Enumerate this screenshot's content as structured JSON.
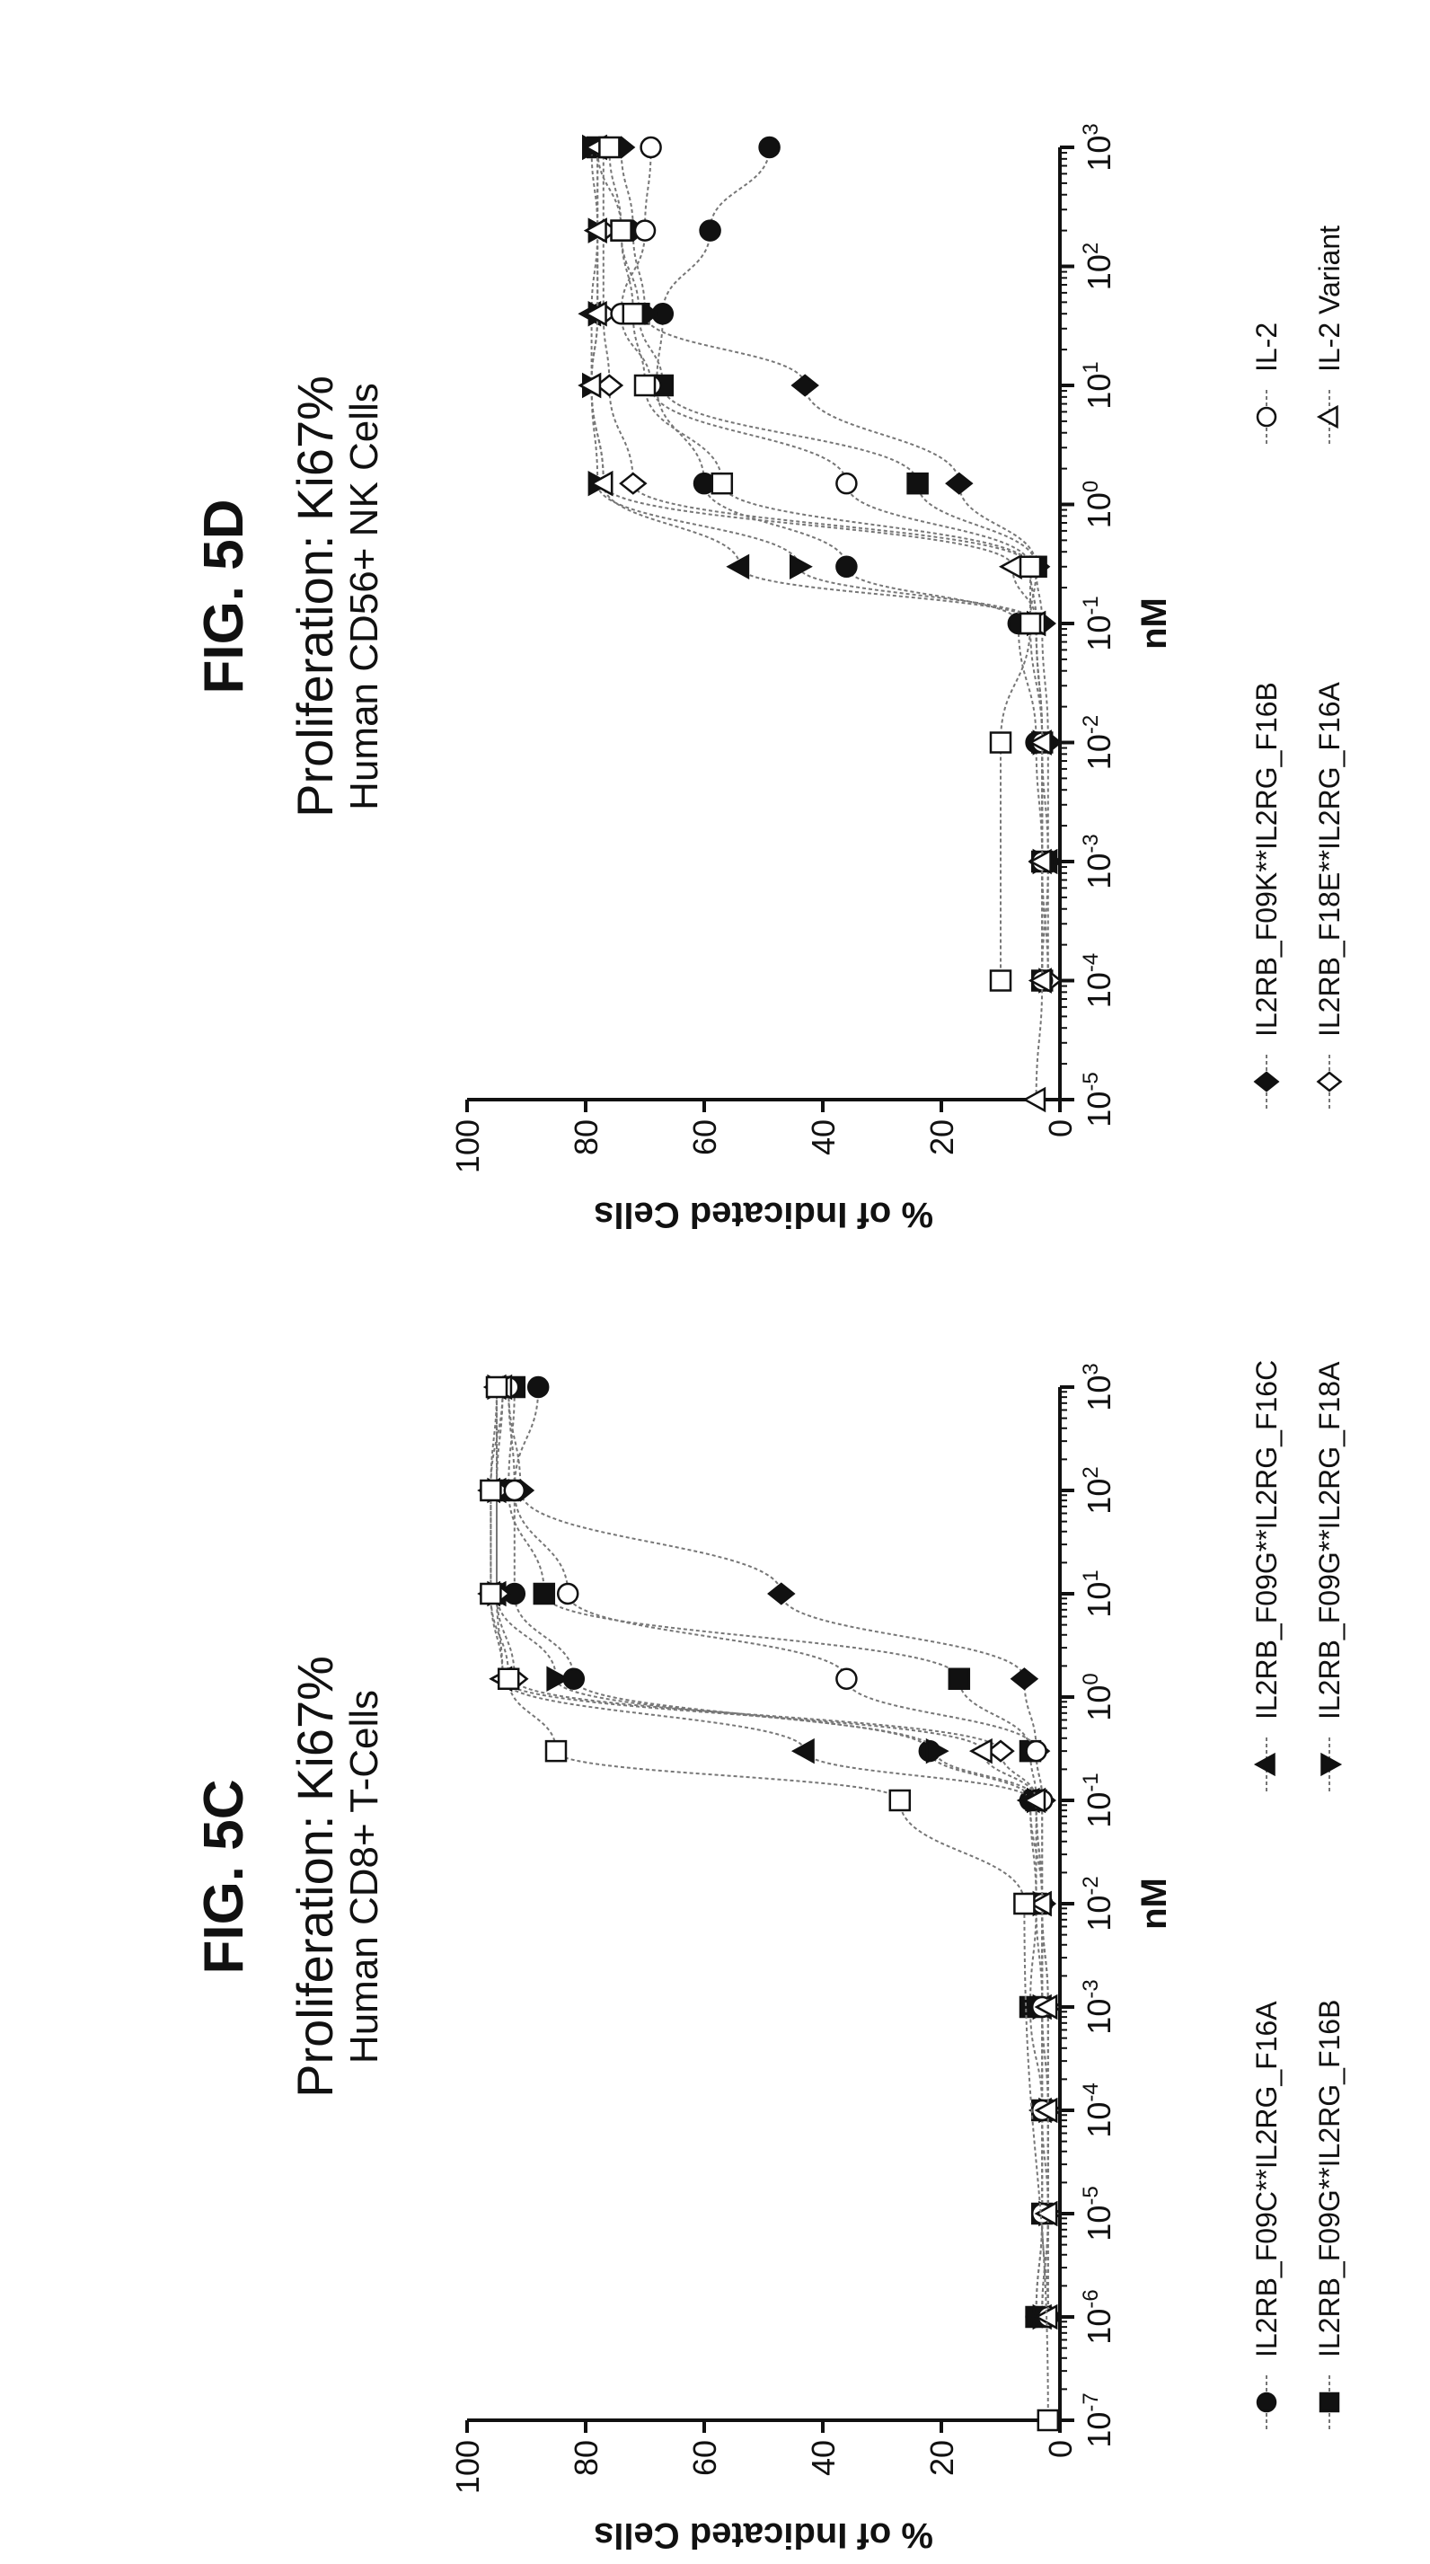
{
  "chart_data": [
    {
      "figure_label": "FIG. 5C",
      "type": "scatter",
      "title": "Proliferation: Ki67%",
      "subtitle": "Human CD8+ T-Cells",
      "xlabel": "nM",
      "ylabel": "% of Indicated Cells",
      "x_scale": "log",
      "xlim": [
        1e-07,
        1000
      ],
      "ylim": [
        0,
        100
      ],
      "x_ticks": [
        {
          "value": 1e-07,
          "base": "10",
          "exp": "-7"
        },
        {
          "value": 1e-06,
          "base": "10",
          "exp": "-6"
        },
        {
          "value": 1e-05,
          "base": "10",
          "exp": "-5"
        },
        {
          "value": 0.0001,
          "base": "10",
          "exp": "-4"
        },
        {
          "value": 0.001,
          "base": "10",
          "exp": "-3"
        },
        {
          "value": 0.01,
          "base": "10",
          "exp": "-2"
        },
        {
          "value": 0.1,
          "base": "10",
          "exp": "-1"
        },
        {
          "value": 1,
          "base": "10",
          "exp": "0"
        },
        {
          "value": 10,
          "base": "10",
          "exp": "1"
        },
        {
          "value": 100,
          "base": "10",
          "exp": "2"
        },
        {
          "value": 1000,
          "base": "10",
          "exp": "3"
        }
      ],
      "y_ticks": [
        "0",
        "20",
        "40",
        "60",
        "80",
        "100"
      ],
      "series": [
        {
          "name": "IL2RB_F09C**IL2RG_F16A",
          "marker": "circle-filled",
          "x": [
            1e-06,
            1e-05,
            0.0001,
            0.001,
            0.01,
            0.1,
            0.3,
            1.5,
            10,
            100,
            1000
          ],
          "y": [
            4,
            3,
            3,
            3,
            4,
            5,
            22,
            82,
            92,
            92,
            88
          ]
        },
        {
          "name": "IL2RB_F09G**IL2RG_F16B",
          "marker": "square-filled",
          "x": [
            1e-06,
            1e-05,
            0.0001,
            0.001,
            0.01,
            0.1,
            0.3,
            1.5,
            10,
            100,
            1000
          ],
          "y": [
            4,
            3,
            3,
            5,
            4,
            4,
            5,
            17,
            87,
            93,
            92
          ]
        },
        {
          "name": "IL2RB_F09G**IL2RG_F16C",
          "marker": "triangle-filled",
          "x": [
            1e-06,
            1e-05,
            0.0001,
            0.001,
            0.01,
            0.1,
            0.3,
            1.5,
            10,
            100,
            1000
          ],
          "y": [
            3,
            2,
            3,
            3,
            3,
            5,
            43,
            94,
            95,
            95,
            95
          ]
        },
        {
          "name": "IL2RB_F09G**IL2RG_F18A",
          "marker": "tri-down-filled",
          "x": [
            1e-06,
            1e-05,
            0.0001,
            0.001,
            0.01,
            0.1,
            0.3,
            1.5,
            10,
            100,
            1000
          ],
          "y": [
            3,
            2,
            2,
            3,
            3,
            4,
            21,
            85,
            95,
            95,
            95
          ]
        },
        {
          "name": "IL2RB_F09K**IL2RG_F16B",
          "marker": "diamond-filled",
          "x": [
            1e-06,
            1e-05,
            0.0001,
            0.001,
            0.01,
            0.1,
            0.3,
            1.5,
            10,
            100,
            1000
          ],
          "y": [
            3,
            2,
            2,
            3,
            3,
            3,
            4,
            6,
            47,
            91,
            93
          ]
        },
        {
          "name": "IL2RB_F18E**IL2RG_F16A",
          "marker": "diamond-open",
          "x": [
            1e-06,
            1e-05,
            0.0001,
            0.001,
            0.01,
            0.1,
            0.3,
            1.5,
            10,
            100,
            1000
          ],
          "y": [
            2,
            2,
            2,
            2,
            3,
            4,
            10,
            92,
            95,
            95,
            94
          ]
        },
        {
          "name": "IL-2",
          "marker": "circle-open",
          "x": [
            1e-06,
            1e-05,
            0.0001,
            0.001,
            0.01,
            0.1,
            0.3,
            1.5,
            10,
            100,
            1000
          ],
          "y": [
            2,
            3,
            3,
            3,
            3,
            3,
            4,
            36,
            83,
            92,
            93
          ]
        },
        {
          "name": "IL-2 Variant",
          "marker": "triangle-open",
          "x": [
            1e-06,
            1e-05,
            0.0001,
            0.001,
            0.01,
            0.1,
            0.3,
            1.5,
            10,
            100,
            1000
          ],
          "y": [
            2,
            2,
            2,
            2,
            3,
            4,
            13,
            94,
            96,
            96,
            94
          ]
        },
        {
          "name": "",
          "marker": "square-open",
          "x": [
            1e-07,
            0.01,
            0.1,
            0.3,
            1.5,
            10,
            100,
            1000
          ],
          "y": [
            2,
            6,
            27,
            85,
            93,
            96,
            96,
            95
          ]
        }
      ]
    },
    {
      "figure_label": "FIG. 5D",
      "type": "scatter",
      "title": "Proliferation: Ki67%",
      "subtitle": "Human CD56+ NK Cells",
      "xlabel": "nM",
      "ylabel": "% of Indicated Cells",
      "x_scale": "log",
      "xlim": [
        1e-05,
        1000
      ],
      "ylim": [
        0,
        100
      ],
      "x_ticks": [
        {
          "value": 1e-05,
          "base": "10",
          "exp": "-5"
        },
        {
          "value": 0.0001,
          "base": "10",
          "exp": "-4"
        },
        {
          "value": 0.001,
          "base": "10",
          "exp": "-3"
        },
        {
          "value": 0.01,
          "base": "10",
          "exp": "-2"
        },
        {
          "value": 0.1,
          "base": "10",
          "exp": "-1"
        },
        {
          "value": 1,
          "base": "10",
          "exp": "0"
        },
        {
          "value": 10,
          "base": "10",
          "exp": "1"
        },
        {
          "value": 100,
          "base": "10",
          "exp": "2"
        },
        {
          "value": 1000,
          "base": "10",
          "exp": "3"
        }
      ],
      "y_ticks": [
        "0",
        "20",
        "40",
        "60",
        "80",
        "100"
      ],
      "series": [
        {
          "name": "IL2RB_F09C**IL2RG_F16A",
          "marker": "circle-filled",
          "x": [
            0.0001,
            0.001,
            0.01,
            0.1,
            0.3,
            1.5,
            10,
            40,
            200,
            1000
          ],
          "y": [
            3,
            3,
            4,
            7,
            36,
            60,
            68,
            67,
            59,
            49
          ]
        },
        {
          "name": "IL2RB_F09G**IL2RG_F16B",
          "marker": "square-filled",
          "x": [
            0.0001,
            0.001,
            0.01,
            0.1,
            0.3,
            1.5,
            10,
            40,
            200,
            1000
          ],
          "y": [
            3,
            3,
            3,
            5,
            4,
            24,
            67,
            71,
            74,
            78
          ]
        },
        {
          "name": "IL2RB_F09G**IL2RG_F16C",
          "marker": "triangle-filled",
          "x": [
            0.0001,
            0.001,
            0.01,
            0.1,
            0.3,
            1.5,
            10,
            40,
            200,
            1000
          ],
          "y": [
            3,
            2,
            3,
            4,
            54,
            77,
            79,
            79,
            78,
            78
          ]
        },
        {
          "name": "IL2RB_F09G**IL2RG_F18A",
          "marker": "tri-down-filled",
          "x": [
            0.0001,
            0.001,
            0.01,
            0.1,
            0.3,
            1.5,
            10,
            40,
            200,
            1000
          ],
          "y": [
            2,
            3,
            3,
            4,
            44,
            78,
            79,
            78,
            78,
            79
          ]
        },
        {
          "name": "IL2RB_F09K**IL2RG_F16B",
          "marker": "diamond-filled",
          "x": [
            0.0001,
            0.001,
            0.01,
            0.1,
            0.3,
            1.5,
            10,
            40,
            200,
            1000
          ],
          "y": [
            2,
            2,
            2,
            3,
            4,
            17,
            43,
            70,
            72,
            74
          ]
        },
        {
          "name": "IL2RB_F18E**IL2RG_F16A",
          "marker": "diamond-open",
          "x": [
            0.0001,
            0.001,
            0.01,
            0.1,
            0.3,
            1.5,
            10,
            40,
            200,
            1000
          ],
          "y": [
            2,
            3,
            3,
            4,
            5,
            72,
            76,
            77,
            77,
            77
          ]
        },
        {
          "name": "IL-2",
          "marker": "circle-open",
          "x": [
            0.0001,
            0.001,
            0.01,
            0.1,
            0.3,
            1.5,
            10,
            40,
            200,
            1000
          ],
          "y": [
            3,
            3,
            3,
            4,
            5,
            36,
            69,
            74,
            70,
            69
          ]
        },
        {
          "name": "IL-2 Variant",
          "marker": "triangle-open",
          "x": [
            1e-05,
            0.0001,
            0.001,
            0.01,
            0.1,
            0.3,
            1.5,
            10,
            40,
            200,
            1000
          ],
          "y": [
            4,
            3,
            3,
            3,
            4,
            8,
            77,
            79,
            78,
            78,
            78
          ]
        },
        {
          "name": "",
          "marker": "square-open",
          "x": [
            0.0001,
            0.01,
            0.1,
            0.3,
            1.5,
            10,
            40,
            200,
            1000
          ],
          "y": [
            10,
            10,
            5,
            5,
            57,
            70,
            72,
            74,
            76
          ]
        }
      ]
    }
  ]
}
